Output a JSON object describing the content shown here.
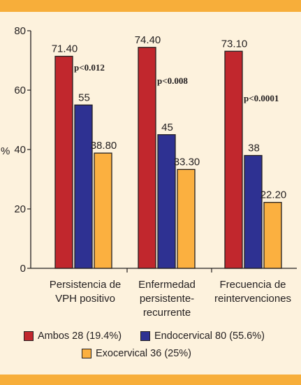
{
  "chart_data": {
    "type": "bar",
    "ylabel": "%",
    "ylim": [
      0,
      80
    ],
    "yticks": [
      "0",
      "20",
      "40",
      "60",
      "80"
    ],
    "categories": [
      [
        "Persistencia de",
        "VPH positivo"
      ],
      [
        "Enfermedad",
        "persistente-",
        "recurrente"
      ],
      [
        "Frecuencia de",
        "reintervenciones"
      ]
    ],
    "series": [
      {
        "name": "Ambos 28 (19.4%)",
        "color": "#c1272d",
        "values": [
          71.4,
          74.4,
          73.1
        ],
        "labels": [
          "71.40",
          "74.40",
          "73.10"
        ]
      },
      {
        "name": "Endocervical 80 (55.6%)",
        "color": "#2e3192",
        "values": [
          55,
          45,
          38
        ],
        "labels": [
          "55",
          "45",
          "38"
        ]
      },
      {
        "name": "Exocervical 36 (25%)",
        "color": "#fbb040",
        "values": [
          38.8,
          33.3,
          22.2
        ],
        "labels": [
          "38.80",
          "33.30",
          "22.20"
        ]
      }
    ],
    "annotations": [
      "p<0.012",
      "p<0.008",
      "p<0.0001"
    ],
    "grid": false,
    "legend_position": "bottom"
  }
}
